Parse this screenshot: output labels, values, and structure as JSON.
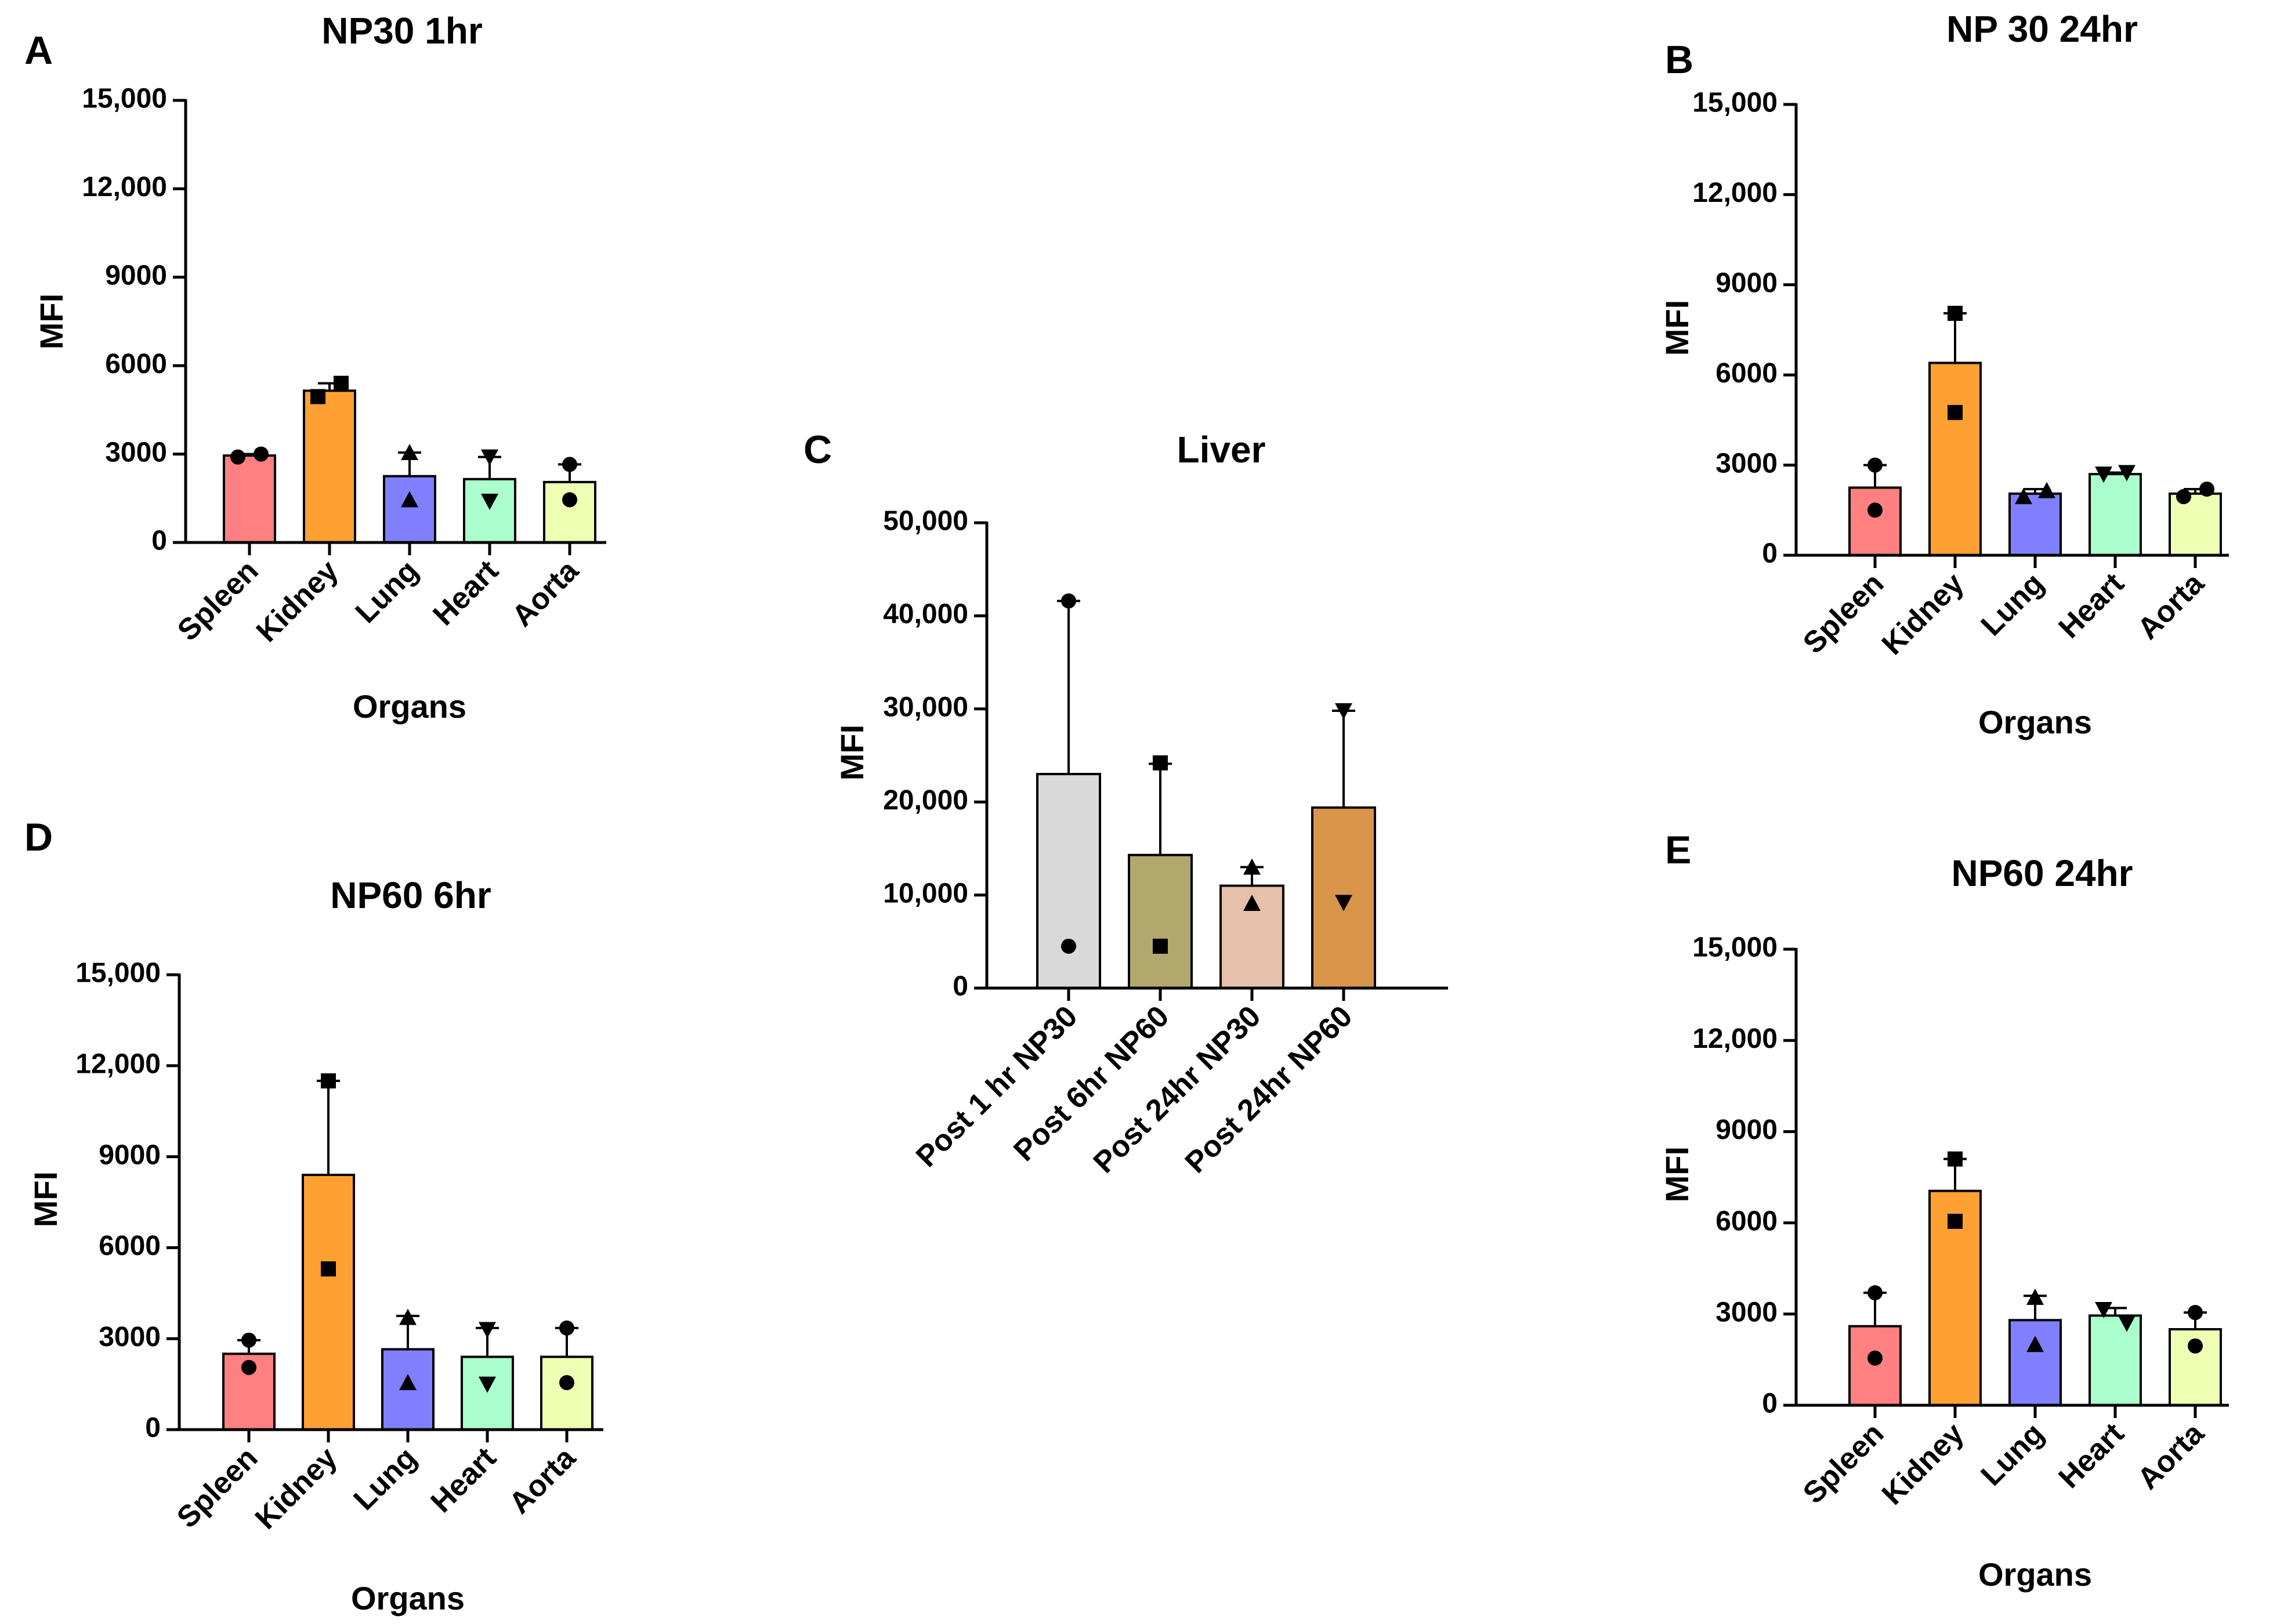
{
  "chart_data": [
    {
      "id": "A",
      "type": "bar",
      "panel_label": "A",
      "title": "NP30 1hr",
      "xlabel": "Organs",
      "ylabel": "MFI",
      "ylim": [
        0,
        15000
      ],
      "yticks": [
        0,
        3000,
        6000,
        9000,
        12000,
        15000
      ],
      "ytick_labels": [
        "0",
        "3000",
        "6000",
        "9000",
        "12,000",
        "15,000"
      ],
      "categories": [
        "Spleen",
        "Kidney",
        "Lung",
        "Heart",
        "Aorta"
      ],
      "values": [
        2950,
        5150,
        2250,
        2150,
        2050
      ],
      "error_bars": [
        50,
        250,
        800,
        750,
        600
      ],
      "points": [
        [
          2900,
          3000
        ],
        [
          4950,
          5400
        ],
        [
          3050,
          1450
        ],
        [
          2900,
          1400
        ],
        [
          2650,
          1450
        ]
      ],
      "markers": [
        "circle",
        "square",
        "triangle-up",
        "triangle-down",
        "circle"
      ],
      "colors": [
        "#ff8080",
        "#ffa033",
        "#8080ff",
        "#aaffcc",
        "#eeffb3"
      ]
    },
    {
      "id": "B",
      "type": "bar",
      "panel_label": "B",
      "title": "NP 30 24hr",
      "xlabel": "Organs",
      "ylabel": "MFI",
      "ylim": [
        0,
        15000
      ],
      "yticks": [
        0,
        3000,
        6000,
        9000,
        12000,
        15000
      ],
      "ytick_labels": [
        "0",
        "3000",
        "6000",
        "9000",
        "12,000",
        "15,000"
      ],
      "categories": [
        "Spleen",
        "Kidney",
        "Lung",
        "Heart",
        "Aorta"
      ],
      "values": [
        2250,
        6400,
        2050,
        2700,
        2050
      ],
      "error_bars": [
        750,
        1650,
        150,
        50,
        150
      ],
      "points": [
        [
          3000,
          1500
        ],
        [
          8050,
          4750
        ],
        [
          1950,
          2150
        ],
        [
          2700,
          2750
        ],
        [
          1950,
          2200
        ]
      ],
      "markers": [
        "circle",
        "square",
        "triangle-up",
        "triangle-down",
        "circle"
      ],
      "colors": [
        "#ff8080",
        "#ffa033",
        "#8080ff",
        "#aaffcc",
        "#eeffb3"
      ]
    },
    {
      "id": "C",
      "type": "bar",
      "panel_label": "C",
      "title": "Liver",
      "xlabel": "",
      "ylabel": "MFI",
      "ylim": [
        0,
        50000
      ],
      "yticks": [
        0,
        10000,
        20000,
        30000,
        40000,
        50000
      ],
      "ytick_labels": [
        "0",
        "10,000",
        "20,000",
        "30,000",
        "40,000",
        "50,000"
      ],
      "categories": [
        "Post 1 hr NP30",
        "Post 6hr NP60",
        "Post 24hr NP30",
        "Post 24hr NP60"
      ],
      "values": [
        23000,
        14300,
        11000,
        19400
      ],
      "error_bars": [
        18600,
        9800,
        2000,
        10400
      ],
      "points": [
        [
          41600,
          4500
        ],
        [
          24200,
          4500
        ],
        [
          13000,
          9100
        ],
        [
          29800,
          9200
        ]
      ],
      "markers": [
        "circle",
        "square",
        "triangle-up",
        "triangle-down"
      ],
      "colors": [
        "#d9d9d9",
        "#b3a86b",
        "#e6c0aa",
        "#d9954a"
      ]
    },
    {
      "id": "D",
      "type": "bar",
      "panel_label": "D",
      "title": "NP60 6hr",
      "xlabel": "Organs",
      "ylabel": "MFI",
      "ylim": [
        0,
        15000
      ],
      "yticks": [
        0,
        3000,
        6000,
        9000,
        12000,
        15000
      ],
      "ytick_labels": [
        "0",
        "3000",
        "6000",
        "9000",
        "12,000",
        "15,000"
      ],
      "categories": [
        "Spleen",
        "Kidney",
        "Lung",
        "Heart",
        "Aorta"
      ],
      "values": [
        2500,
        8400,
        2650,
        2400,
        2400
      ],
      "error_bars": [
        450,
        3100,
        1100,
        950,
        950
      ],
      "points": [
        [
          2950,
          2050
        ],
        [
          11500,
          5300
        ],
        [
          3700,
          1550
        ],
        [
          3300,
          1500
        ],
        [
          3350,
          1550
        ]
      ],
      "markers": [
        "circle",
        "square",
        "triangle-up",
        "triangle-down",
        "circle"
      ],
      "colors": [
        "#ff8080",
        "#ffa033",
        "#8080ff",
        "#aaffcc",
        "#eeffb3"
      ]
    },
    {
      "id": "E",
      "type": "bar",
      "panel_label": "E",
      "title": "NP60 24hr",
      "xlabel": "Organs",
      "ylabel": "MFI",
      "ylim": [
        0,
        15000
      ],
      "yticks": [
        0,
        3000,
        6000,
        9000,
        12000,
        15000
      ],
      "ytick_labels": [
        "0",
        "3000",
        "6000",
        "9000",
        "12,000",
        "15,000"
      ],
      "categories": [
        "Spleen",
        "Kidney",
        "Lung",
        "Heart",
        "Aorta"
      ],
      "values": [
        2600,
        7050,
        2800,
        2950,
        2500
      ],
      "error_bars": [
        1100,
        1050,
        800,
        250,
        550
      ],
      "points": [
        [
          3700,
          1550
        ],
        [
          8100,
          6050
        ],
        [
          3550,
          2000
        ],
        [
          3150,
          2700
        ],
        [
          3050,
          1950
        ]
      ],
      "markers": [
        "circle",
        "square",
        "triangle-up",
        "triangle-down",
        "circle"
      ],
      "colors": [
        "#ff8080",
        "#ffa033",
        "#8080ff",
        "#aaffcc",
        "#eeffb3"
      ]
    }
  ]
}
